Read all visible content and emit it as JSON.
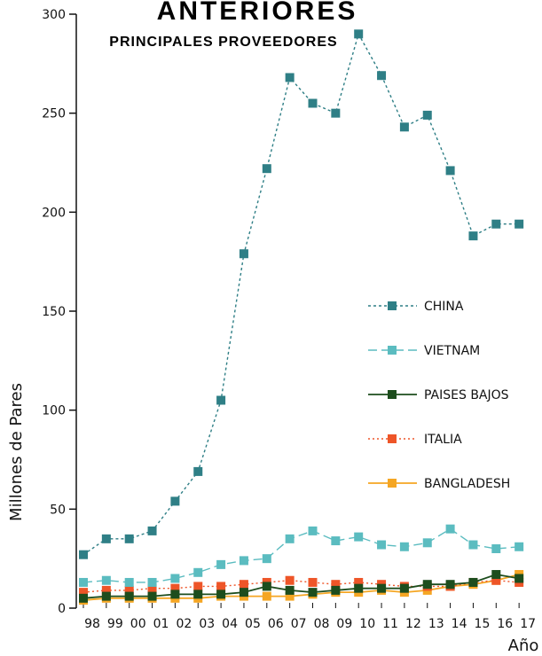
{
  "chart_data": {
    "type": "line",
    "title": "ANTERIORES",
    "subtitle": "PRINCIPALES PROVEEDORES",
    "xlabel": "Año",
    "ylabel": "Millones de Pares",
    "ylim": [
      0,
      300
    ],
    "yticks": [
      0,
      50,
      100,
      150,
      200,
      250,
      300
    ],
    "categories": [
      "98",
      "99",
      "00",
      "01",
      "02",
      "03",
      "04",
      "05",
      "06",
      "07",
      "08",
      "09",
      "10",
      "11",
      "12",
      "13",
      "14",
      "15",
      "16",
      "17"
    ],
    "legend_position": "right",
    "series": [
      {
        "name": "CHINA",
        "color": "#2f7f86",
        "dash": "3,3",
        "values": [
          27,
          35,
          35,
          39,
          54,
          69,
          105,
          179,
          222,
          268,
          255,
          250,
          290,
          269,
          243,
          249,
          221,
          188,
          194,
          194
        ]
      },
      {
        "name": "VIETNAM",
        "color": "#5bbcc0",
        "dash": "10,5",
        "values": [
          13,
          14,
          13,
          13,
          15,
          18,
          22,
          24,
          25,
          35,
          39,
          34,
          36,
          32,
          31,
          33,
          40,
          32,
          30,
          31
        ]
      },
      {
        "name": "PAISES BAJOS",
        "color": "#1d4d1d",
        "dash": "",
        "values": [
          5,
          6,
          6,
          6,
          7,
          7,
          7,
          8,
          11,
          9,
          8,
          9,
          10,
          10,
          10,
          12,
          12,
          13,
          17,
          15
        ]
      },
      {
        "name": "ITALIA",
        "color": "#ee5528",
        "dash": "2,3",
        "values": [
          8,
          9,
          9,
          10,
          10,
          11,
          11,
          12,
          13,
          14,
          13,
          12,
          13,
          12,
          11,
          11,
          11,
          13,
          14,
          13
        ]
      },
      {
        "name": "BANGLADESH",
        "color": "#f5a623",
        "dash": "",
        "values": [
          4,
          5,
          5,
          5,
          5,
          5,
          6,
          6,
          6,
          6,
          7,
          8,
          8,
          9,
          8,
          9,
          11,
          12,
          14,
          17
        ]
      }
    ]
  }
}
